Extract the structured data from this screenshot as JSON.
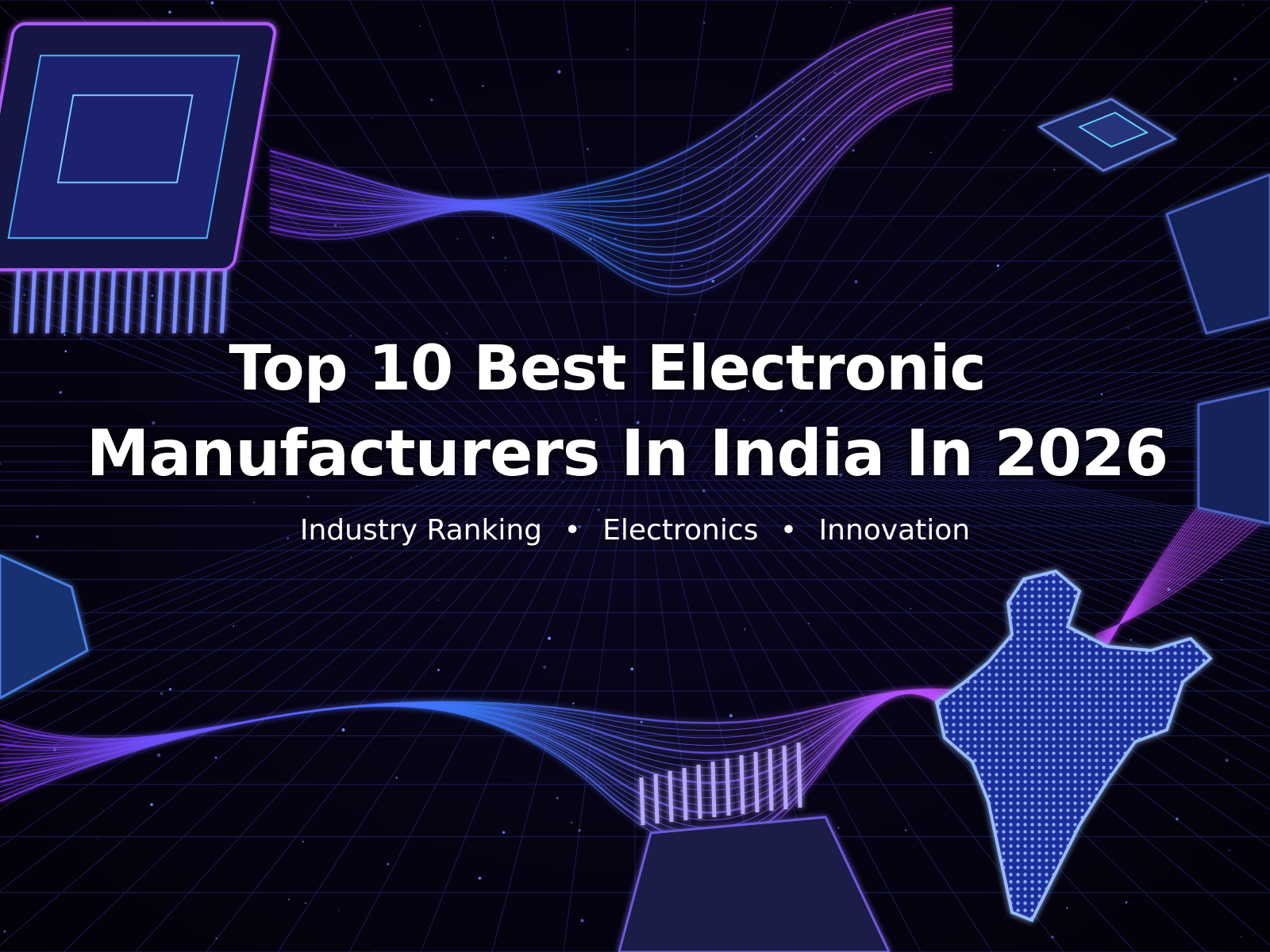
{
  "banner": {
    "title_lines": [
      "Top 10 Best Electronic",
      "Manufacturers In India In 2026"
    ],
    "subtitle_items": [
      "Industry Ranking",
      "Electronics",
      "Innovation"
    ],
    "separator": "•"
  }
}
